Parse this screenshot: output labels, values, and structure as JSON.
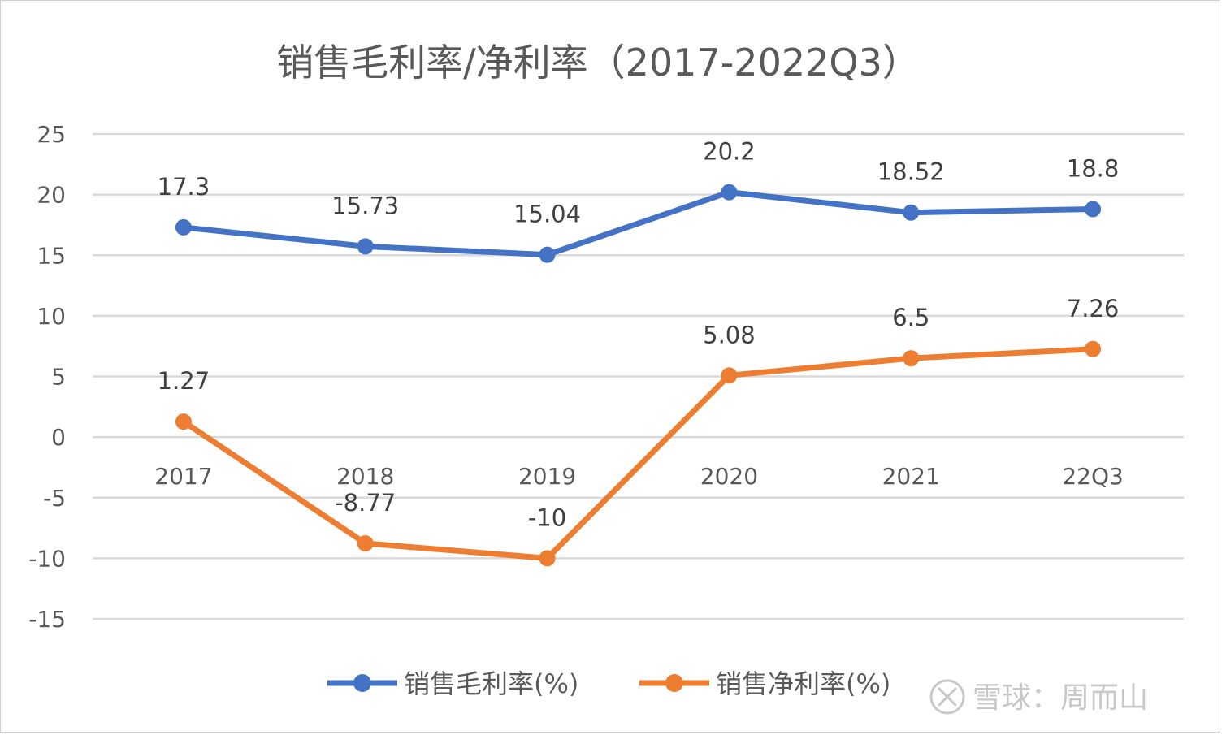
{
  "chart_data": {
    "type": "line",
    "title": "销售毛利率/净利率（2017-2022Q3）",
    "categories": [
      "2017",
      "2018",
      "2019",
      "2020",
      "2021",
      "22Q3"
    ],
    "series": [
      {
        "name": "销售毛利率(%)",
        "color": "#4472C4",
        "values": [
          17.3,
          15.73,
          15.04,
          20.2,
          18.52,
          18.8
        ],
        "labels": [
          "17.3",
          "15.73",
          "15.04",
          "20.2",
          "18.52",
          "18.8"
        ]
      },
      {
        "name": "销售净利率(%)",
        "color": "#ED7D31",
        "values": [
          1.27,
          -8.77,
          -10,
          5.08,
          6.5,
          7.26
        ],
        "labels": [
          "1.27",
          "-8.77",
          "-10",
          "5.08",
          "6.5",
          "7.26"
        ]
      }
    ],
    "ylim": [
      -15,
      25
    ],
    "yticks": [
      25,
      20,
      15,
      10,
      5,
      0,
      -5,
      -10,
      -15
    ],
    "grid": true,
    "legend_position": "bottom"
  },
  "watermark": {
    "text": "雪球：周而山"
  }
}
